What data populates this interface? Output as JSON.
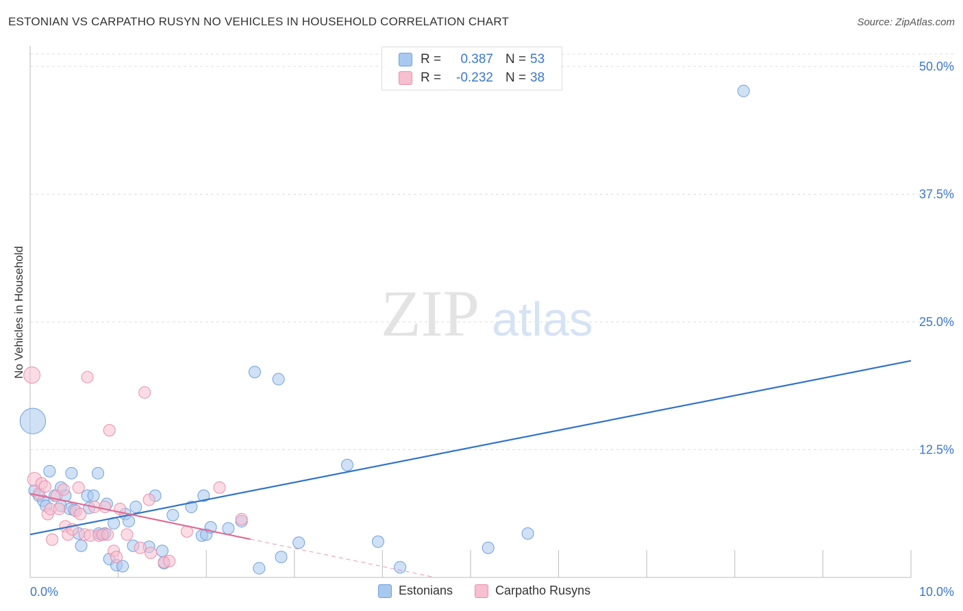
{
  "title": "ESTONIAN VS CARPATHO RUSYN NO VEHICLES IN HOUSEHOLD CORRELATION CHART",
  "source": "Source: ZipAtlas.com",
  "watermark": {
    "zip": "ZIP",
    "atlas": "atlas"
  },
  "legend": {
    "rows": [
      {
        "r_label": "R =",
        "r_value": "0.387",
        "n_label": "N =",
        "n_value": "53",
        "color": "#a9c8ef",
        "stroke": "#6f9fdc"
      },
      {
        "r_label": "R =",
        "r_value": "-0.232",
        "n_label": "N =",
        "n_value": "38",
        "color": "#f7bfd0",
        "stroke": "#e88fab"
      }
    ]
  },
  "bottom_legend": [
    {
      "label": "Estonians",
      "color": "#a9c8ef",
      "stroke": "#6f9fdc"
    },
    {
      "label": "Carpatho Rusyns",
      "color": "#f7bfd0",
      "stroke": "#e88fab"
    }
  ],
  "chart_data": {
    "type": "scatter",
    "xlabel": "",
    "ylabel": "No Vehicles in Household",
    "xlim": [
      0,
      10
    ],
    "ylim": [
      0,
      50
    ],
    "x_tick_labels": [
      {
        "value": 0,
        "label": "0.0%"
      },
      {
        "value": 10,
        "label": "10.0%"
      }
    ],
    "y_tick_labels": [
      {
        "value": 12.5,
        "label": "12.5%"
      },
      {
        "value": 25,
        "label": "25.0%"
      },
      {
        "value": 37.5,
        "label": "37.5%"
      },
      {
        "value": 50,
        "label": "50.0%"
      }
    ],
    "x_minor_ticks": [
      1,
      2,
      3,
      4,
      5,
      6,
      7,
      8,
      9,
      10
    ],
    "series": [
      {
        "name": "Estonians",
        "color": "#a9c8ef",
        "stroke": "#6f9fdc",
        "line_color": "#2f73c9",
        "trend": {
          "x0": 0,
          "y0": 4.2,
          "x1": 10,
          "y1": 21.2,
          "dash_from": null
        },
        "points": [
          [
            0.03,
            15.3,
            2.2
          ],
          [
            0.05,
            8.5,
            1
          ],
          [
            0.1,
            8.0,
            1
          ],
          [
            0.15,
            7.5,
            1
          ],
          [
            0.18,
            7.0,
            1
          ],
          [
            0.22,
            10.4,
            1
          ],
          [
            0.28,
            8.0,
            1
          ],
          [
            0.35,
            7.0,
            1
          ],
          [
            0.35,
            8.8,
            1
          ],
          [
            0.4,
            8.0,
            1
          ],
          [
            0.45,
            6.7,
            1
          ],
          [
            0.47,
            10.2,
            1
          ],
          [
            0.5,
            6.6,
            1
          ],
          [
            0.55,
            4.3,
            1
          ],
          [
            0.58,
            3.1,
            1
          ],
          [
            0.65,
            8.0,
            1
          ],
          [
            0.67,
            6.8,
            1
          ],
          [
            0.72,
            8.0,
            1
          ],
          [
            0.77,
            10.2,
            1
          ],
          [
            0.78,
            4.3,
            1
          ],
          [
            0.83,
            4.2,
            1
          ],
          [
            0.85,
            4.3,
            1
          ],
          [
            0.87,
            7.2,
            1
          ],
          [
            0.9,
            1.8,
            1
          ],
          [
            0.95,
            5.3,
            1
          ],
          [
            0.98,
            1.2,
            1
          ],
          [
            1.05,
            1.1,
            1
          ],
          [
            1.08,
            6.2,
            1
          ],
          [
            1.12,
            5.5,
            1
          ],
          [
            1.17,
            3.1,
            1
          ],
          [
            1.2,
            6.9,
            1
          ],
          [
            1.35,
            3.0,
            1
          ],
          [
            1.42,
            8.0,
            1
          ],
          [
            1.5,
            2.6,
            1
          ],
          [
            1.52,
            1.4,
            1
          ],
          [
            1.62,
            6.1,
            1
          ],
          [
            1.83,
            6.9,
            1
          ],
          [
            1.95,
            4.1,
            1
          ],
          [
            1.97,
            8.0,
            1
          ],
          [
            2.0,
            4.2,
            1
          ],
          [
            2.05,
            4.9,
            1
          ],
          [
            2.25,
            4.8,
            1
          ],
          [
            2.4,
            5.5,
            1
          ],
          [
            2.55,
            20.1,
            1
          ],
          [
            2.6,
            0.9,
            1
          ],
          [
            2.82,
            19.4,
            1
          ],
          [
            2.85,
            2.0,
            1
          ],
          [
            3.05,
            3.4,
            1
          ],
          [
            3.6,
            11.0,
            1
          ],
          [
            3.95,
            3.5,
            1
          ],
          [
            4.2,
            1.0,
            1
          ],
          [
            5.2,
            2.9,
            1
          ],
          [
            5.65,
            4.3,
            1
          ],
          [
            8.1,
            47.6,
            1
          ]
        ]
      },
      {
        "name": "Carpatho Rusyns",
        "color": "#f7bfd0",
        "stroke": "#e88fab",
        "line_color": "#e06b95",
        "trend": {
          "x0": 0,
          "y0": 8.2,
          "x1": 4.6,
          "y1": 0,
          "dash_from": 2.5
        },
        "points": [
          [
            0.02,
            19.8,
            1.4
          ],
          [
            0.05,
            9.6,
            1.2
          ],
          [
            0.1,
            8.2,
            1
          ],
          [
            0.13,
            9.2,
            1
          ],
          [
            0.17,
            8.9,
            1
          ],
          [
            0.2,
            6.2,
            1
          ],
          [
            0.23,
            6.7,
            1
          ],
          [
            0.25,
            3.7,
            1
          ],
          [
            0.3,
            8.0,
            1
          ],
          [
            0.33,
            6.7,
            1
          ],
          [
            0.38,
            8.6,
            1
          ],
          [
            0.4,
            5.0,
            1
          ],
          [
            0.43,
            4.2,
            1
          ],
          [
            0.48,
            4.7,
            1
          ],
          [
            0.52,
            6.5,
            1
          ],
          [
            0.55,
            8.8,
            1
          ],
          [
            0.57,
            6.2,
            1
          ],
          [
            0.62,
            4.2,
            1
          ],
          [
            0.65,
            19.6,
            1
          ],
          [
            0.68,
            4.1,
            1
          ],
          [
            0.73,
            6.9,
            1
          ],
          [
            0.78,
            4.1,
            1
          ],
          [
            0.82,
            4.2,
            1
          ],
          [
            0.85,
            6.9,
            1
          ],
          [
            0.88,
            4.2,
            1
          ],
          [
            0.9,
            14.4,
            1
          ],
          [
            0.95,
            2.6,
            1
          ],
          [
            0.98,
            2.0,
            1
          ],
          [
            1.02,
            6.7,
            1
          ],
          [
            1.1,
            4.2,
            1
          ],
          [
            1.25,
            2.9,
            1
          ],
          [
            1.3,
            18.1,
            1
          ],
          [
            1.35,
            7.6,
            1
          ],
          [
            1.37,
            2.4,
            1
          ],
          [
            1.52,
            1.5,
            1
          ],
          [
            1.58,
            1.6,
            1
          ],
          [
            1.78,
            4.5,
            1
          ],
          [
            2.15,
            8.8,
            1
          ],
          [
            2.4,
            5.7,
            1
          ]
        ]
      }
    ]
  }
}
